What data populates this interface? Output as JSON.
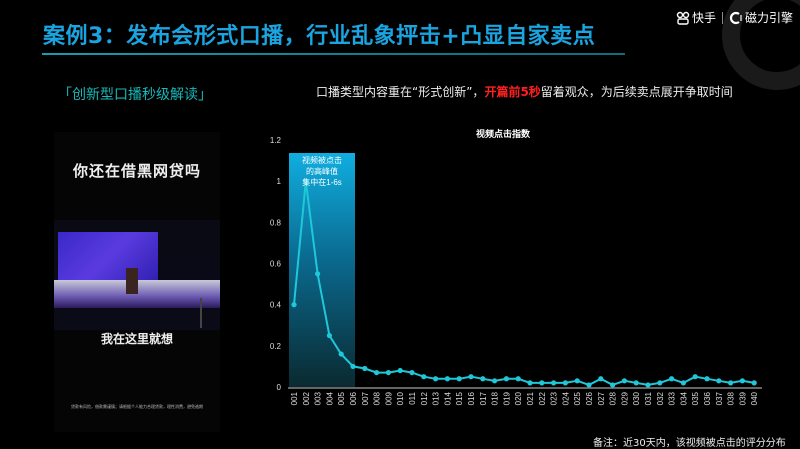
{
  "header": {
    "title": "案例3：发布会形式口播，行业乱象抨击+凸显自家卖点",
    "brand": {
      "kuaishou_label": "快手",
      "cili_label": "磁力引擎",
      "kuaishou_icon": "kuaishou-logo-icon",
      "cili_icon": "cili-engine-logo-icon"
    }
  },
  "section": {
    "subtitle": "「创新型口播秒级解读」",
    "description_prefix": "口播类型内容重在“形式创新”，",
    "description_highlight": "开篇前5秒",
    "description_suffix": "留着观众，为后续卖点展开争取时间",
    "highlight_color": "#ff2020"
  },
  "video_preview": {
    "caption_top": "你还在借黑网贷吗",
    "caption_bottom": "我在这里就想",
    "fine_print": "贷款有风险，借款需谨慎；请根据个人能力合理贷款，理性消费，避免逾期"
  },
  "annotation": {
    "line1": "视频被点击",
    "line2": "的高峰值",
    "line3": "集中在1-6s"
  },
  "footer": {
    "note": "备注：近30天内，该视频被点击的评分分布"
  },
  "chart_data": {
    "type": "line",
    "title": "视频点击指数",
    "xlabel": "",
    "ylabel": "",
    "ylim": [
      0,
      1.2
    ],
    "yticks": [
      0,
      0.2,
      0.4,
      0.6,
      0.8,
      1,
      1.2
    ],
    "ytick_labels": [
      "0",
      "0.2",
      "0.4",
      "0.6",
      "0.8",
      "1",
      "1.2"
    ],
    "grid": false,
    "legend": null,
    "line_color": "#1ec8d8",
    "highlight_band": {
      "from": "001",
      "to": "006",
      "label": "视频被点击的高峰值集中在1-6s"
    },
    "categories": [
      "001",
      "002",
      "003",
      "004",
      "005",
      "006",
      "007",
      "008",
      "009",
      "010",
      "011",
      "012",
      "013",
      "014",
      "015",
      "016",
      "017",
      "018",
      "019",
      "020",
      "021",
      "022",
      "023",
      "024",
      "025",
      "026",
      "027",
      "028",
      "029",
      "030",
      "031",
      "032",
      "033",
      "034",
      "035",
      "036",
      "037",
      "038",
      "039",
      "040"
    ],
    "values": [
      0.4,
      1.0,
      0.55,
      0.25,
      0.16,
      0.1,
      0.09,
      0.07,
      0.07,
      0.08,
      0.07,
      0.05,
      0.04,
      0.04,
      0.04,
      0.05,
      0.04,
      0.03,
      0.04,
      0.04,
      0.02,
      0.02,
      0.02,
      0.02,
      0.03,
      0.01,
      0.04,
      0.01,
      0.03,
      0.02,
      0.01,
      0.02,
      0.04,
      0.02,
      0.05,
      0.04,
      0.03,
      0.02,
      0.03,
      0.02
    ]
  }
}
